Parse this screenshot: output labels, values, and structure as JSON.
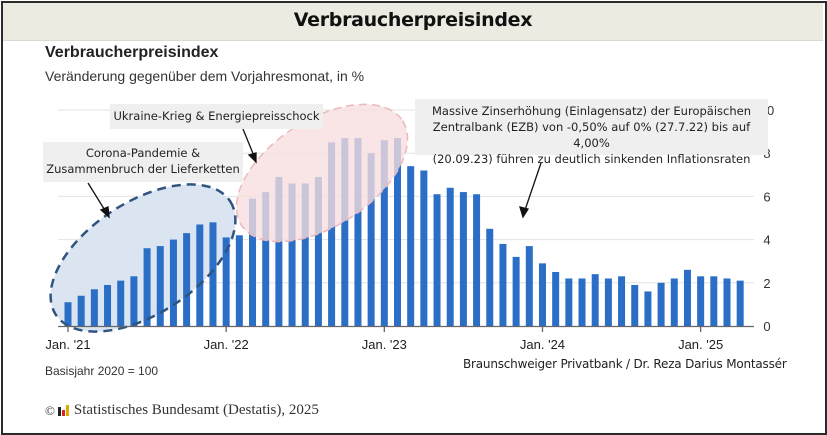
{
  "header": {
    "title": "Verbraucherpreisindex"
  },
  "chart_data": {
    "type": "bar",
    "title": "Verbraucherpreisindex",
    "subtitle": "Veränderung gegenüber dem Vorjahresmonat, in %",
    "xlabel": "",
    "ylabel": "",
    "ylim": [
      0,
      10
    ],
    "yticks": [
      0,
      2,
      4,
      6,
      8,
      10
    ],
    "grid": true,
    "yaxis_position": "right",
    "xtick_labels": [
      {
        "label": "Jan. '21",
        "index": 0
      },
      {
        "label": "Jan. '22",
        "index": 12
      },
      {
        "label": "Jan. '23",
        "index": 24
      },
      {
        "label": "Jan. '24",
        "index": 36
      },
      {
        "label": "Jan. '25",
        "index": 48
      }
    ],
    "categories": [
      "2021-01",
      "2021-02",
      "2021-03",
      "2021-04",
      "2021-05",
      "2021-06",
      "2021-07",
      "2021-08",
      "2021-09",
      "2021-10",
      "2021-11",
      "2021-12",
      "2022-01",
      "2022-02",
      "2022-03",
      "2022-04",
      "2022-05",
      "2022-06",
      "2022-07",
      "2022-08",
      "2022-09",
      "2022-10",
      "2022-11",
      "2022-12",
      "2023-01",
      "2023-02",
      "2023-03",
      "2023-04",
      "2023-05",
      "2023-06",
      "2023-07",
      "2023-08",
      "2023-09",
      "2023-10",
      "2023-11",
      "2023-12",
      "2024-01",
      "2024-02",
      "2024-03",
      "2024-04",
      "2024-05",
      "2024-06",
      "2024-07",
      "2024-08",
      "2024-09",
      "2024-10",
      "2024-11",
      "2024-12",
      "2025-01",
      "2025-02",
      "2025-03",
      "2025-04"
    ],
    "values": [
      1.1,
      1.4,
      1.7,
      1.9,
      2.1,
      2.3,
      3.6,
      3.7,
      4.0,
      4.3,
      4.7,
      4.8,
      4.1,
      4.2,
      5.9,
      6.2,
      6.9,
      6.6,
      6.6,
      6.9,
      8.5,
      8.7,
      8.7,
      8.0,
      8.6,
      8.7,
      7.4,
      7.2,
      6.1,
      6.4,
      6.2,
      6.1,
      4.5,
      3.8,
      3.2,
      3.7,
      2.9,
      2.5,
      2.2,
      2.2,
      2.4,
      2.2,
      2.3,
      1.9,
      1.6,
      2.0,
      2.2,
      2.6,
      2.3,
      2.3,
      2.2,
      2.1
    ],
    "bar_color": "#2a6ec6",
    "annotations": [
      {
        "id": "corona",
        "text": [
          "Corona-Pandemie &",
          "Zusammenbruch der Lieferketten"
        ],
        "highlight_range": [
          "2021-01",
          "2021-12"
        ],
        "highlight_color": "#dbe4f1",
        "highlight_border": "#2f5480"
      },
      {
        "id": "ukraine",
        "text": [
          "Ukraine-Krieg & Energiepreisschock"
        ],
        "highlight_range": [
          "2022-03",
          "2023-02"
        ],
        "highlight_color": "#f6dddd",
        "highlight_border": "#e8b8b8"
      },
      {
        "id": "ezb",
        "text": [
          "Massive Zinserhöhung (Einlagensatz) der Europäischen",
          "Zentralbank (EZB) von -0,50% auf 0% (27.7.22) bis auf 4,00%",
          "(20.09.23) führen zu deutlich sinkenden Inflationsraten"
        ]
      }
    ]
  },
  "footer": {
    "basis": "Basisjahr 2020 = 100",
    "credit": "Braunschweiger Privatbank / Dr. Reza Darius Montassér",
    "copyright_symbol": "©",
    "source": "Statistisches Bundesamt (Destatis), 2025"
  }
}
